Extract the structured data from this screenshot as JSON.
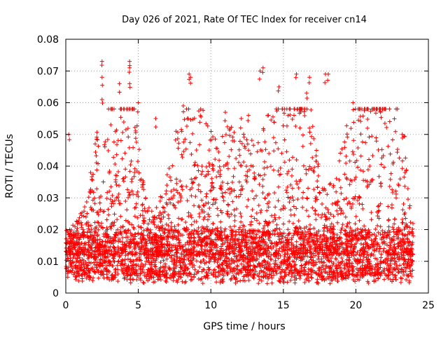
{
  "chart_data": {
    "type": "scatter",
    "title": "Day 026 of 2021, Rate Of TEC Index for receiver cn14",
    "xlabel": "GPS time / hours",
    "ylabel": "ROTI / TECUs",
    "xlim": [
      0,
      25
    ],
    "ylim": [
      0,
      0.08
    ],
    "x_ticks": [
      0,
      5,
      10,
      15,
      20,
      25
    ],
    "y_ticks": [
      0,
      0.01,
      0.02,
      0.03,
      0.04,
      0.05,
      0.06,
      0.07,
      0.08
    ],
    "x_tick_labels": [
      "0",
      "5",
      "10",
      "15",
      "20",
      "25"
    ],
    "y_tick_labels": [
      "0",
      "0.01",
      "0.02",
      "0.03",
      "0.04",
      "0.05",
      "0.06",
      "0.07",
      "0.08"
    ],
    "grid": true,
    "marker": "+",
    "marker_color": "#ff0000",
    "x_data_range": [
      0,
      23.95
    ],
    "baseline_roti": [
      0.005,
      0.02
    ],
    "peak_points": [
      {
        "x": 2.5,
        "y": 0.073
      },
      {
        "x": 2.5,
        "y": 0.068
      },
      {
        "x": 2.5,
        "y": 0.061
      },
      {
        "x": 3.7,
        "y": 0.066
      },
      {
        "x": 4.4,
        "y": 0.073
      },
      {
        "x": 4.4,
        "y": 0.071
      },
      {
        "x": 4.4,
        "y": 0.066
      },
      {
        "x": 5.0,
        "y": 0.06
      },
      {
        "x": 8.5,
        "y": 0.069
      },
      {
        "x": 8.6,
        "y": 0.068
      },
      {
        "x": 8.1,
        "y": 0.059
      },
      {
        "x": 11.0,
        "y": 0.057
      },
      {
        "x": 13.4,
        "y": 0.07
      },
      {
        "x": 13.6,
        "y": 0.071
      },
      {
        "x": 14.7,
        "y": 0.065
      },
      {
        "x": 15.9,
        "y": 0.069
      },
      {
        "x": 16.8,
        "y": 0.068
      },
      {
        "x": 16.6,
        "y": 0.063
      },
      {
        "x": 16.5,
        "y": 0.058
      },
      {
        "x": 17.9,
        "y": 0.069
      },
      {
        "x": 18.1,
        "y": 0.069
      },
      {
        "x": 19.8,
        "y": 0.06
      },
      {
        "x": 21.7,
        "y": 0.057
      },
      {
        "x": 23.2,
        "y": 0.05
      },
      {
        "x": 0.2,
        "y": 0.05
      },
      {
        "x": 6.2,
        "y": 0.055
      },
      {
        "x": 7.6,
        "y": 0.051
      },
      {
        "x": 12.1,
        "y": 0.055
      },
      {
        "x": 12.6,
        "y": 0.056
      },
      {
        "x": 16.8,
        "y": 0.052
      }
    ]
  }
}
